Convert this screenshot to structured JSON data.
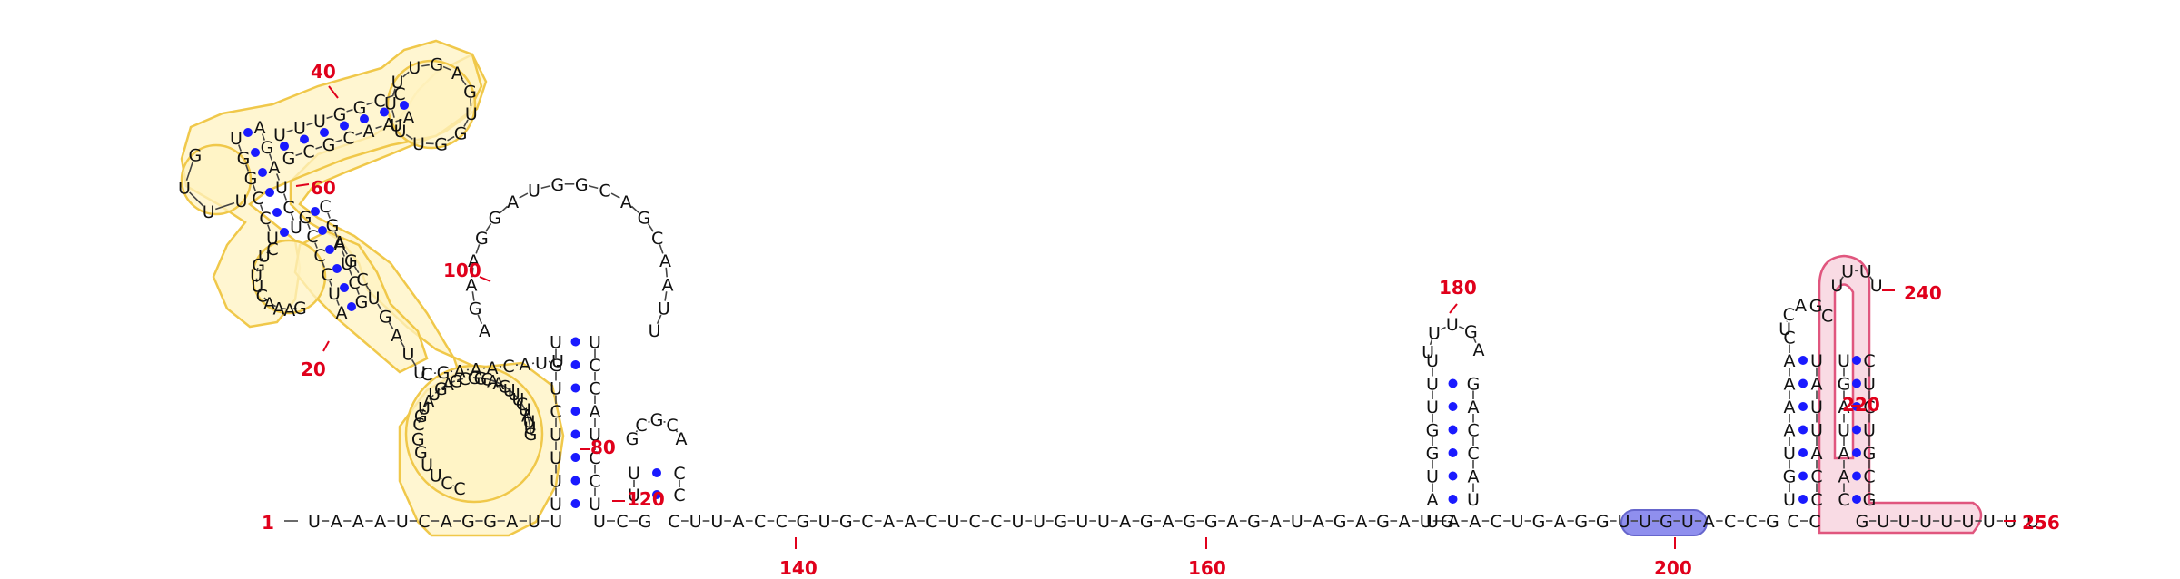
{
  "colors": {
    "nucleotide": "#111111",
    "backbone": "#444444",
    "base_pair": "#1a1aff",
    "position_label": "#e0001b",
    "yellow_fill": "#fff3c2",
    "yellow_stroke": "#f0c84a",
    "pink_fill": "#f8d2dd",
    "pink_stroke": "#e0567e",
    "blue_fill": "#8f8fee",
    "blue_stroke": "#6666cc"
  },
  "position_labels": [
    "1",
    "20",
    "40",
    "60",
    "80",
    "100",
    "120",
    "140",
    "160",
    "180",
    "200",
    "220",
    "240",
    "256"
  ],
  "segments": {
    "main_line": "UAAAUCAGGAUU",
    "linker_1": "UCG",
    "linker_2": "CUUACCGUGCAACUCCUUGUUAGAGGAGAUAGAGAUG",
    "linker_3": "UAACUGAGGUUGUACCG",
    "linker_4": "CC",
    "linker_5": "GUUUUUUU",
    "loop_1": "CCUUGG",
    "stem_1_left": "UUAGUCGA",
    "stem_1_right": "CGUAUGAGC",
    "stem_2_left": "AUCCCG",
    "stem_2_right": "GCUAGC",
    "loop_2": "GUGAUUGAGU",
    "loop_3": "GGCAACUUUCUAUUG",
    "loop_4": "GAAACUUGUC",
    "stem_3_left": "UCCGGU",
    "stem_3_right": "UCUAGA",
    "loop_5": "AGAAGGAUGGCAGCAAUU",
    "stem_4_left": "UUUGGCC",
    "stem_4_right": "GCGCAAA",
    "loop_6": "UUGCGC",
    "stem_5": "AUCUUGGU",
    "stem_5b": "GACCAAU",
    "loop_7": "UUUG",
    "stem_6_left": "AAAUUG",
    "stem_6_right": "UUAAAC",
    "loop_8": "UCAGCAG",
    "stem_7_left": "GGAAGCA",
    "stem_7_right": "UGCUUCC",
    "loop_9": "UUUU",
    "stem_8_left": "GAGAUAC",
    "stem_8_right": "GUAUCUC"
  }
}
